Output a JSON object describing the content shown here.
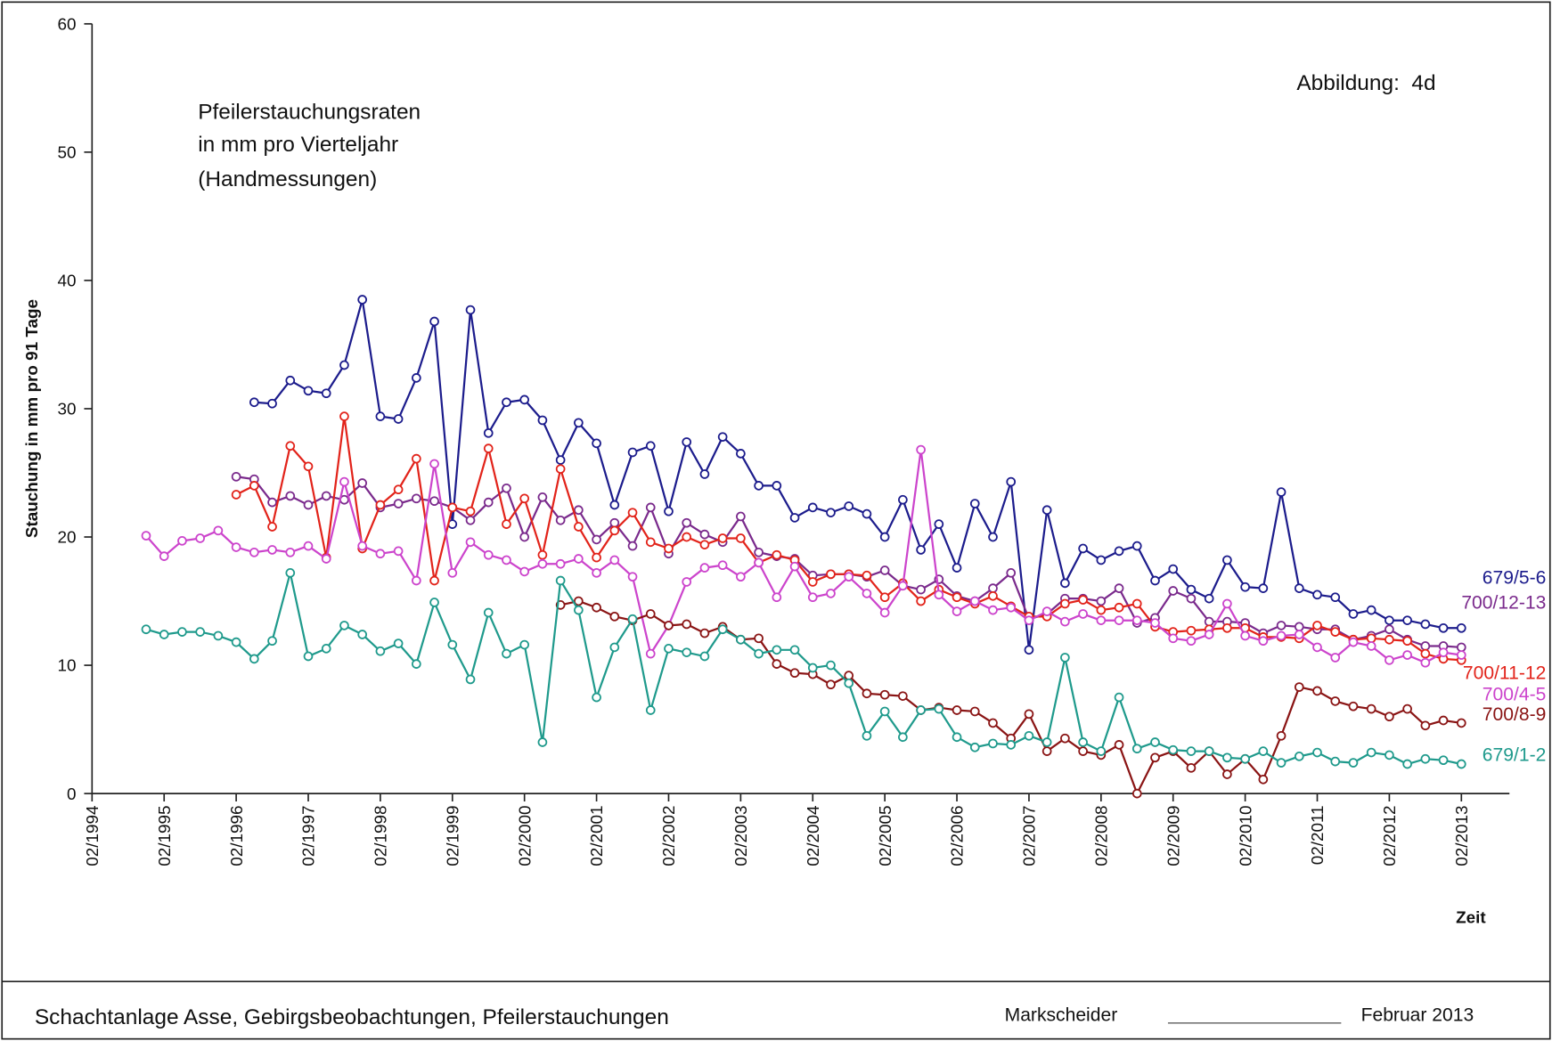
{
  "chart_data": {
    "type": "line",
    "title_lines": [
      "Pfeilerstauchungsraten",
      "in mm pro Vierteljahr",
      "(Handmessungen)"
    ],
    "annotation": "Abbildung:  4d",
    "y_label": "Stauchung in mm pro 91 Tage",
    "x_label": "Zeit",
    "xlim": [
      "02/1994",
      "10/2013"
    ],
    "xticks": [
      "02/1994",
      "02/1995",
      "02/1996",
      "02/1997",
      "02/1998",
      "02/1999",
      "02/2000",
      "02/2001",
      "02/2002",
      "02/2003",
      "02/2004",
      "02/2005",
      "02/2006",
      "02/2007",
      "02/2008",
      "02/2009",
      "02/2010",
      "02/2011",
      "02/2012",
      "02/2013"
    ],
    "ylim": [
      0,
      60
    ],
    "yticks": [
      0,
      10,
      20,
      30,
      40,
      50,
      60
    ],
    "grid": false,
    "x": [
      "11/1994",
      "02/1995",
      "05/1995",
      "08/1995",
      "11/1995",
      "02/1996",
      "05/1996",
      "08/1996",
      "11/1996",
      "02/1997",
      "05/1997",
      "08/1997",
      "11/1997",
      "02/1998",
      "05/1998",
      "08/1998",
      "11/1998",
      "02/1999",
      "05/1999",
      "08/1999",
      "11/1999",
      "02/2000",
      "05/2000",
      "08/2000",
      "11/2000",
      "02/2001",
      "05/2001",
      "08/2001",
      "11/2001",
      "02/2002",
      "05/2002",
      "08/2002",
      "11/2002",
      "02/2003",
      "05/2003",
      "08/2003",
      "11/2003",
      "02/2004",
      "05/2004",
      "08/2004",
      "11/2004",
      "02/2005",
      "05/2005",
      "08/2005",
      "11/2005",
      "02/2006",
      "05/2006",
      "08/2006",
      "11/2006",
      "02/2007",
      "05/2007",
      "08/2007",
      "11/2007",
      "02/2008",
      "05/2008",
      "08/2008",
      "11/2008",
      "02/2009",
      "05/2009",
      "08/2009",
      "11/2009",
      "02/2010",
      "05/2010",
      "08/2010",
      "11/2010",
      "02/2011",
      "05/2011",
      "08/2011",
      "11/2011",
      "02/2012",
      "05/2012",
      "08/2012",
      "11/2012",
      "02/2013"
    ],
    "series": [
      {
        "name": "679/5-6",
        "color": "#1c1c8c",
        "values": [
          null,
          null,
          null,
          null,
          null,
          null,
          30.5,
          30.4,
          32.2,
          31.4,
          31.2,
          33.4,
          38.5,
          29.4,
          29.2,
          32.4,
          36.8,
          21.0,
          37.7,
          28.1,
          30.5,
          30.7,
          29.1,
          26.0,
          28.9,
          27.3,
          22.5,
          26.6,
          27.1,
          22.0,
          27.4,
          24.9,
          27.8,
          26.5,
          24.0,
          24.0,
          21.5,
          22.3,
          21.9,
          22.4,
          21.8,
          20.0,
          22.9,
          19.0,
          21.0,
          17.6,
          22.6,
          20.0,
          24.3,
          11.2,
          22.1,
          16.4,
          19.1,
          18.2,
          18.9,
          19.3,
          16.6,
          17.5,
          15.9,
          15.2,
          18.2,
          16.1,
          16.0,
          23.5,
          16.0,
          15.5,
          15.3,
          14.0,
          14.3,
          13.5,
          13.5,
          13.2,
          12.9,
          12.9
        ]
      },
      {
        "name": "700/12-13",
        "color": "#7a2a8c",
        "values": [
          null,
          null,
          null,
          null,
          null,
          24.7,
          24.5,
          22.7,
          23.2,
          22.5,
          23.2,
          22.9,
          24.2,
          22.3,
          22.6,
          23.0,
          22.8,
          22.3,
          21.3,
          22.7,
          23.8,
          20.0,
          23.1,
          21.3,
          22.1,
          19.8,
          21.1,
          19.3,
          22.3,
          18.7,
          21.1,
          20.2,
          19.6,
          21.6,
          18.8,
          18.5,
          18.3,
          17.0,
          17.1,
          17.1,
          16.9,
          17.4,
          16.2,
          15.9,
          16.7,
          15.4,
          15.0,
          16.0,
          17.2,
          13.6,
          14.0,
          15.2,
          15.2,
          15.0,
          16.0,
          13.3,
          13.7,
          15.8,
          15.2,
          13.4,
          13.4,
          13.3,
          12.5,
          13.1,
          13.0,
          12.8,
          12.8,
          12.0,
          12.3,
          12.8,
          12.0,
          11.5,
          11.5,
          11.4
        ]
      },
      {
        "name": "700/11-12",
        "color": "#e2231a",
        "values": [
          null,
          null,
          null,
          null,
          null,
          23.3,
          24.0,
          20.8,
          27.1,
          25.5,
          18.4,
          29.4,
          19.1,
          22.5,
          23.7,
          26.1,
          16.6,
          22.3,
          22.0,
          26.9,
          21.0,
          23.0,
          18.6,
          25.3,
          20.8,
          18.4,
          20.5,
          21.9,
          19.6,
          19.1,
          20.0,
          19.4,
          19.9,
          19.9,
          18.0,
          18.6,
          18.2,
          16.5,
          17.1,
          17.1,
          17.0,
          15.3,
          16.4,
          15.0,
          15.9,
          15.3,
          14.8,
          15.4,
          14.6,
          13.8,
          13.8,
          14.8,
          15.1,
          14.3,
          14.5,
          14.8,
          13.0,
          12.6,
          12.7,
          12.8,
          12.9,
          12.9,
          12.2,
          12.2,
          12.1,
          13.1,
          12.6,
          12.0,
          12.1,
          12.0,
          11.9,
          10.9,
          10.5,
          10.4
        ]
      },
      {
        "name": "700/4-5",
        "color": "#cc44cc",
        "values": [
          20.1,
          18.5,
          19.7,
          19.9,
          20.5,
          19.2,
          18.8,
          19.0,
          18.8,
          19.3,
          18.3,
          24.3,
          19.3,
          18.7,
          18.9,
          16.6,
          25.7,
          17.2,
          19.6,
          18.6,
          18.2,
          17.3,
          17.9,
          17.9,
          18.3,
          17.2,
          18.2,
          16.9,
          10.9,
          13.1,
          16.5,
          17.6,
          17.8,
          16.9,
          18.0,
          15.3,
          17.7,
          15.3,
          15.6,
          16.9,
          15.6,
          14.1,
          16.2,
          26.8,
          15.5,
          14.2,
          15.0,
          14.3,
          14.5,
          13.5,
          14.2,
          13.4,
          14.0,
          13.5,
          13.5,
          13.5,
          13.3,
          12.1,
          11.9,
          12.4,
          14.8,
          12.3,
          11.9,
          12.3,
          12.4,
          11.4,
          10.6,
          11.8,
          11.5,
          10.4,
          10.8,
          10.2,
          11.0,
          10.8
        ]
      },
      {
        "name": "700/8-9",
        "color": "#8a1414",
        "values": [
          null,
          null,
          null,
          null,
          null,
          null,
          null,
          null,
          null,
          null,
          null,
          null,
          null,
          null,
          null,
          null,
          null,
          null,
          null,
          null,
          null,
          null,
          null,
          14.7,
          15.0,
          14.5,
          13.8,
          13.5,
          14.0,
          13.1,
          13.2,
          12.5,
          13.0,
          12.0,
          12.1,
          10.1,
          9.4,
          9.3,
          8.5,
          9.2,
          7.8,
          7.7,
          7.6,
          6.5,
          6.7,
          6.5,
          6.4,
          5.5,
          4.3,
          6.2,
          3.3,
          4.3,
          3.3,
          3.0,
          3.8,
          0.0,
          2.8,
          3.3,
          2.0,
          3.3,
          1.5,
          2.7,
          1.1,
          4.5,
          8.3,
          8.0,
          7.2,
          6.8,
          6.6,
          6.0,
          6.6,
          5.3,
          5.7,
          5.5
        ]
      },
      {
        "name": "679/1-2",
        "color": "#1f9a8c",
        "values": [
          12.8,
          12.4,
          12.6,
          12.6,
          12.3,
          11.8,
          10.5,
          11.9,
          17.2,
          10.7,
          11.3,
          13.1,
          12.4,
          11.1,
          11.7,
          10.1,
          14.9,
          11.6,
          8.9,
          14.1,
          10.9,
          11.6,
          4.0,
          16.6,
          14.3,
          7.5,
          11.4,
          13.6,
          6.5,
          11.3,
          11.0,
          10.7,
          12.8,
          12.0,
          10.9,
          11.2,
          11.2,
          9.8,
          10.0,
          8.6,
          4.5,
          6.4,
          4.4,
          6.5,
          6.6,
          4.4,
          3.6,
          3.9,
          3.8,
          4.5,
          4.0,
          10.6,
          4.0,
          3.3,
          7.5,
          3.5,
          4.0,
          3.4,
          3.3,
          3.3,
          2.8,
          2.7,
          3.3,
          2.4,
          2.9,
          3.2,
          2.5,
          2.4,
          3.2,
          3.0,
          2.3,
          2.7,
          2.6,
          2.3
        ]
      }
    ]
  },
  "footer": {
    "left": "Schachtanlage Asse, Gebirgsbeobachtungen, Pfeilerstauchungen",
    "signature_label": "Markscheider",
    "date": "Februar 2013"
  }
}
